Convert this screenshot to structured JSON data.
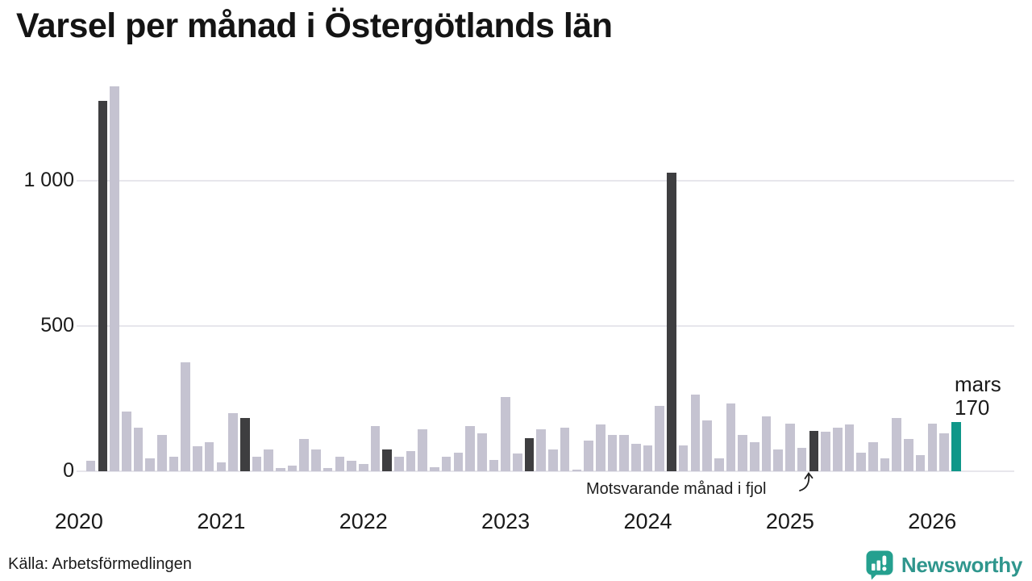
{
  "header": {
    "title": "Varsel per månad i Östergötlands län"
  },
  "annotation": {
    "text": "Motsvarande månad i fjol"
  },
  "last_label": {
    "line1": "mars",
    "line2": "170"
  },
  "footer": {
    "source": "Källa: Arbetsförmedlingen",
    "logo_text": "Newsworthy"
  },
  "colors": {
    "bar_normal": "#c5c3d1",
    "bar_fjol": "#3e3e40",
    "bar_current": "#0f9789",
    "grid": "#e7e6ec",
    "logo_icon": "#25a08f",
    "logo_text": "#2f968d"
  },
  "chart_data": {
    "type": "bar",
    "title": "Varsel per månad i Östergötlands län",
    "xlabel": "",
    "ylabel": "",
    "x_unit": "month",
    "range": [
      "2020-01",
      "2026-03"
    ],
    "ylim": [
      0,
      1400
    ],
    "grid": "horizontal",
    "yticks": [
      {
        "value": 0,
        "label": "0"
      },
      {
        "value": 500,
        "label": "500"
      },
      {
        "value": 1000,
        "label": "1 000"
      }
    ],
    "series_note_fjol": "Motsvarande månad i fjol",
    "current_point": {
      "month": "2026-03",
      "label_line1": "mars",
      "label_line2": "170",
      "value": 170
    },
    "months": [
      {
        "month": "2020-01",
        "value": null,
        "kind": "none"
      },
      {
        "month": "2020-02",
        "value": 35,
        "kind": "normal"
      },
      {
        "month": "2020-03",
        "value": 1275,
        "kind": "fjol"
      },
      {
        "month": "2020-04",
        "value": 1325,
        "kind": "normal"
      },
      {
        "month": "2020-05",
        "value": 205,
        "kind": "normal"
      },
      {
        "month": "2020-06",
        "value": 150,
        "kind": "normal"
      },
      {
        "month": "2020-07",
        "value": 45,
        "kind": "normal"
      },
      {
        "month": "2020-08",
        "value": 125,
        "kind": "normal"
      },
      {
        "month": "2020-09",
        "value": 50,
        "kind": "normal"
      },
      {
        "month": "2020-10",
        "value": 375,
        "kind": "normal"
      },
      {
        "month": "2020-11",
        "value": 85,
        "kind": "normal"
      },
      {
        "month": "2020-12",
        "value": 100,
        "kind": "normal"
      },
      {
        "month": "2021-01",
        "value": 30,
        "kind": "normal"
      },
      {
        "month": "2021-02",
        "value": 200,
        "kind": "normal"
      },
      {
        "month": "2021-03",
        "value": 185,
        "kind": "fjol"
      },
      {
        "month": "2021-04",
        "value": 50,
        "kind": "normal"
      },
      {
        "month": "2021-05",
        "value": 75,
        "kind": "normal"
      },
      {
        "month": "2021-06",
        "value": 10,
        "kind": "normal"
      },
      {
        "month": "2021-07",
        "value": 20,
        "kind": "normal"
      },
      {
        "month": "2021-08",
        "value": 110,
        "kind": "normal"
      },
      {
        "month": "2021-09",
        "value": 75,
        "kind": "normal"
      },
      {
        "month": "2021-10",
        "value": 10,
        "kind": "normal"
      },
      {
        "month": "2021-11",
        "value": 50,
        "kind": "normal"
      },
      {
        "month": "2021-12",
        "value": 35,
        "kind": "normal"
      },
      {
        "month": "2022-01",
        "value": 25,
        "kind": "normal"
      },
      {
        "month": "2022-02",
        "value": 155,
        "kind": "normal"
      },
      {
        "month": "2022-03",
        "value": 75,
        "kind": "fjol"
      },
      {
        "month": "2022-04",
        "value": 50,
        "kind": "normal"
      },
      {
        "month": "2022-05",
        "value": 70,
        "kind": "normal"
      },
      {
        "month": "2022-06",
        "value": 145,
        "kind": "normal"
      },
      {
        "month": "2022-07",
        "value": 15,
        "kind": "normal"
      },
      {
        "month": "2022-08",
        "value": 50,
        "kind": "normal"
      },
      {
        "month": "2022-09",
        "value": 65,
        "kind": "normal"
      },
      {
        "month": "2022-10",
        "value": 155,
        "kind": "normal"
      },
      {
        "month": "2022-11",
        "value": 130,
        "kind": "normal"
      },
      {
        "month": "2022-12",
        "value": 40,
        "kind": "normal"
      },
      {
        "month": "2023-01",
        "value": 255,
        "kind": "normal"
      },
      {
        "month": "2023-02",
        "value": 60,
        "kind": "normal"
      },
      {
        "month": "2023-03",
        "value": 115,
        "kind": "fjol"
      },
      {
        "month": "2023-04",
        "value": 145,
        "kind": "normal"
      },
      {
        "month": "2023-05",
        "value": 75,
        "kind": "normal"
      },
      {
        "month": "2023-06",
        "value": 150,
        "kind": "normal"
      },
      {
        "month": "2023-07",
        "value": 5,
        "kind": "normal"
      },
      {
        "month": "2023-08",
        "value": 105,
        "kind": "normal"
      },
      {
        "month": "2023-09",
        "value": 160,
        "kind": "normal"
      },
      {
        "month": "2023-10",
        "value": 125,
        "kind": "normal"
      },
      {
        "month": "2023-11",
        "value": 125,
        "kind": "normal"
      },
      {
        "month": "2023-12",
        "value": 95,
        "kind": "normal"
      },
      {
        "month": "2024-01",
        "value": 90,
        "kind": "normal"
      },
      {
        "month": "2024-02",
        "value": 225,
        "kind": "normal"
      },
      {
        "month": "2024-03",
        "value": 1030,
        "kind": "fjol"
      },
      {
        "month": "2024-04",
        "value": 90,
        "kind": "normal"
      },
      {
        "month": "2024-05",
        "value": 265,
        "kind": "normal"
      },
      {
        "month": "2024-06",
        "value": 175,
        "kind": "normal"
      },
      {
        "month": "2024-07",
        "value": 45,
        "kind": "normal"
      },
      {
        "month": "2024-08",
        "value": 235,
        "kind": "normal"
      },
      {
        "month": "2024-09",
        "value": 125,
        "kind": "normal"
      },
      {
        "month": "2024-10",
        "value": 100,
        "kind": "normal"
      },
      {
        "month": "2024-11",
        "value": 190,
        "kind": "normal"
      },
      {
        "month": "2024-12",
        "value": 75,
        "kind": "normal"
      },
      {
        "month": "2025-01",
        "value": 165,
        "kind": "normal"
      },
      {
        "month": "2025-02",
        "value": 80,
        "kind": "normal"
      },
      {
        "month": "2025-03",
        "value": 140,
        "kind": "fjol"
      },
      {
        "month": "2025-04",
        "value": 135,
        "kind": "normal"
      },
      {
        "month": "2025-05",
        "value": 150,
        "kind": "normal"
      },
      {
        "month": "2025-06",
        "value": 160,
        "kind": "normal"
      },
      {
        "month": "2025-07",
        "value": 65,
        "kind": "normal"
      },
      {
        "month": "2025-08",
        "value": 100,
        "kind": "normal"
      },
      {
        "month": "2025-09",
        "value": 45,
        "kind": "normal"
      },
      {
        "month": "2025-10",
        "value": 185,
        "kind": "normal"
      },
      {
        "month": "2025-11",
        "value": 110,
        "kind": "normal"
      },
      {
        "month": "2025-12",
        "value": 55,
        "kind": "normal"
      },
      {
        "month": "2026-01",
        "value": 165,
        "kind": "normal"
      },
      {
        "month": "2026-02",
        "value": 130,
        "kind": "normal"
      },
      {
        "month": "2026-03",
        "value": 170,
        "kind": "current"
      }
    ],
    "year_labels": [
      "2020",
      "2021",
      "2022",
      "2023",
      "2024",
      "2025",
      "2026"
    ],
    "legend_position": "none"
  }
}
